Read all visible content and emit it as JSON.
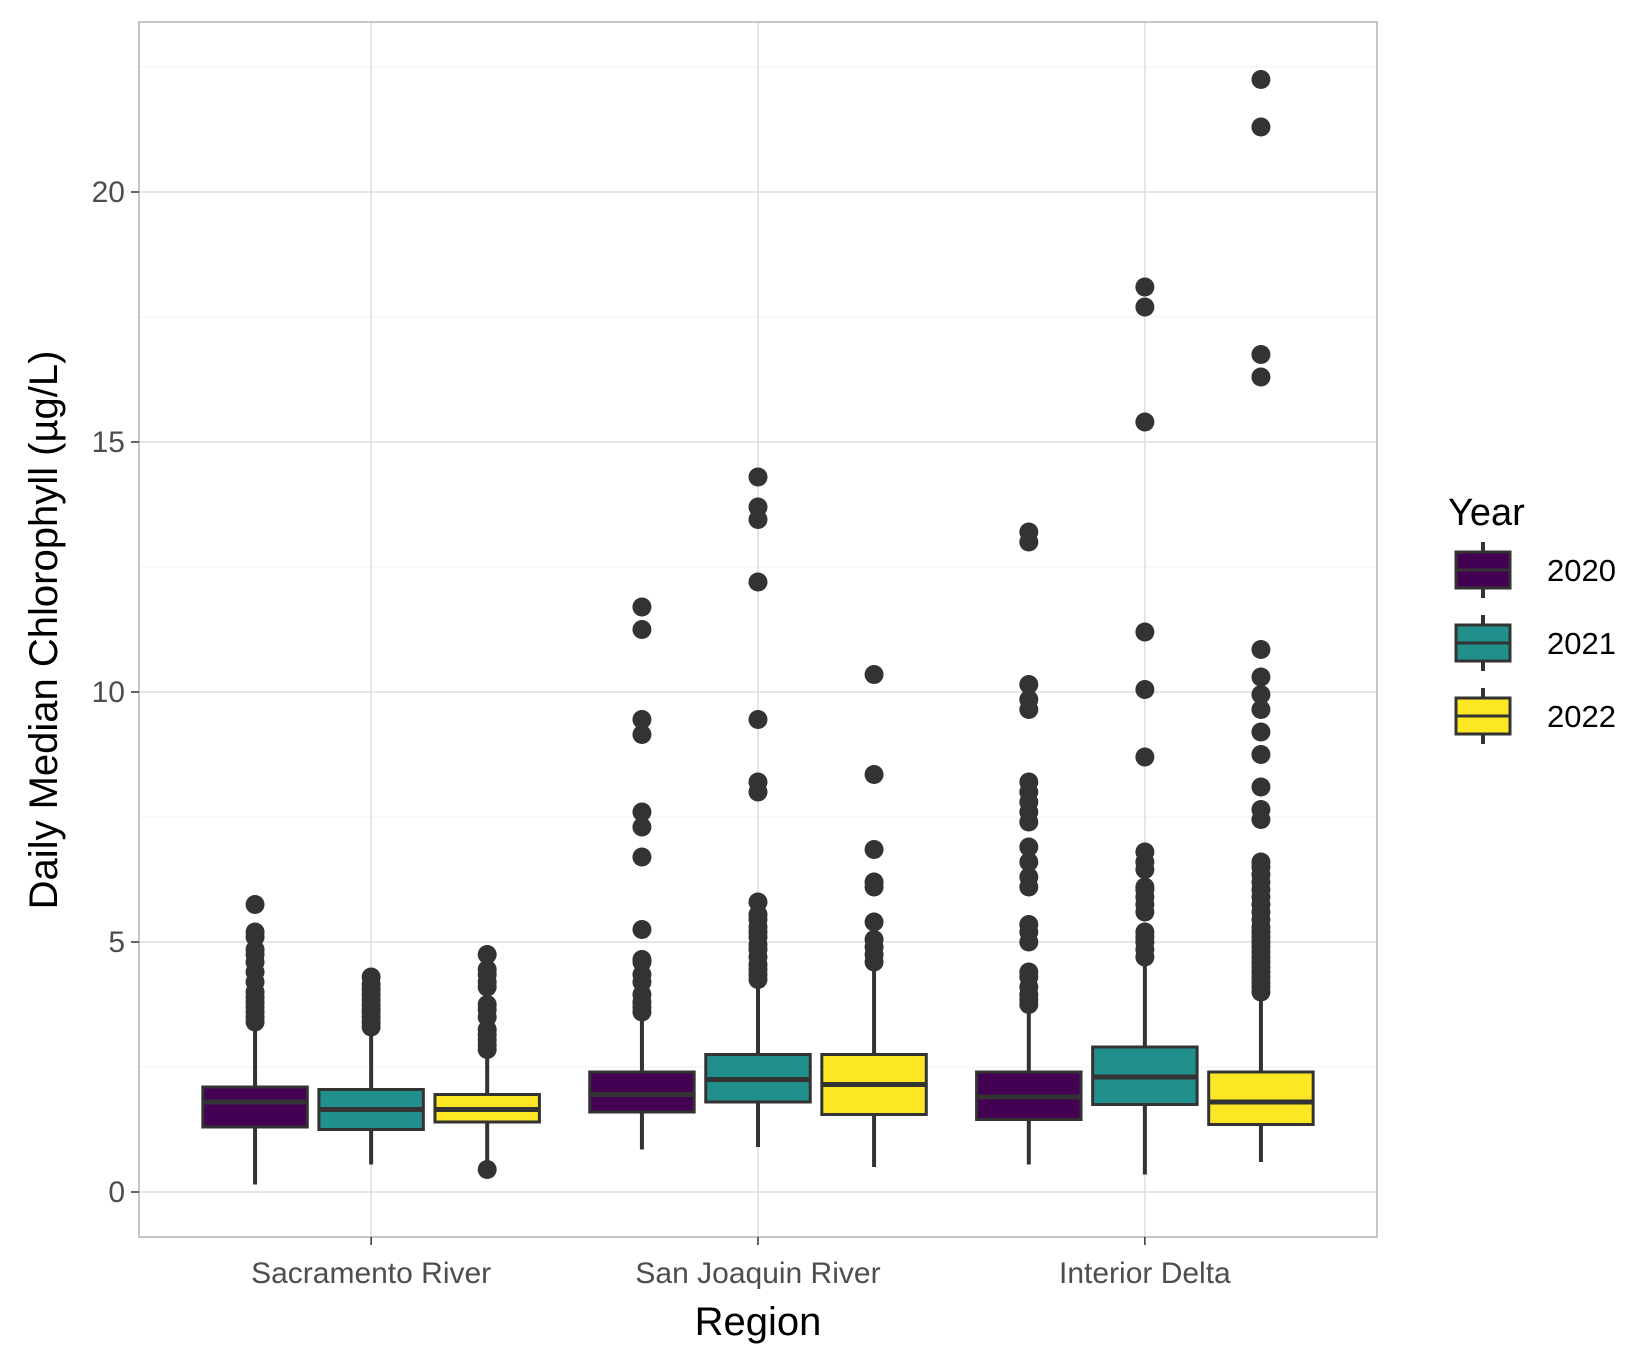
{
  "chart_data": {
    "type": "box",
    "title": "",
    "xlabel": "Region",
    "ylabel": "Daily Median Chlorophyll (µg/L)",
    "ylim": [
      -0.9,
      23.4
    ],
    "yticks": [
      0,
      5,
      10,
      15,
      20
    ],
    "grid": true,
    "legend": {
      "title": "Year",
      "position": "right"
    },
    "categories": [
      "Sacramento River",
      "San Joaquin River",
      "Interior Delta"
    ],
    "series": [
      {
        "name": "2020",
        "color": "#440154",
        "boxes": [
          {
            "category": "Sacramento River",
            "min": 0.15,
            "q1": 1.3,
            "median": 1.8,
            "q3": 2.1,
            "max": 3.3,
            "outliers": [
              3.4,
              3.5,
              3.6,
              3.7,
              3.8,
              3.9,
              4.0,
              4.2,
              4.4,
              4.6,
              4.75,
              4.85,
              5.1,
              5.2,
              5.75
            ]
          },
          {
            "category": "San Joaquin River",
            "min": 0.85,
            "q1": 1.6,
            "median": 1.95,
            "q3": 2.4,
            "max": 3.5,
            "outliers": [
              3.6,
              3.7,
              3.8,
              3.95,
              4.2,
              4.35,
              4.6,
              4.65,
              5.25,
              6.7,
              7.3,
              7.6,
              9.15,
              9.45,
              11.25,
              11.7
            ]
          },
          {
            "category": "Interior Delta",
            "min": 0.55,
            "q1": 1.45,
            "median": 1.9,
            "q3": 2.4,
            "max": 3.65,
            "outliers": [
              3.75,
              3.85,
              3.95,
              4.1,
              4.3,
              4.4,
              5.0,
              5.2,
              5.35,
              6.1,
              6.3,
              6.6,
              6.9,
              7.4,
              7.6,
              7.8,
              8.0,
              8.2,
              9.65,
              9.85,
              10.15,
              13.0,
              13.2
            ]
          }
        ]
      },
      {
        "name": "2021",
        "color": "#21908c",
        "boxes": [
          {
            "category": "Sacramento River",
            "min": 0.55,
            "q1": 1.25,
            "median": 1.65,
            "q3": 2.05,
            "max": 3.25,
            "outliers": [
              3.3,
              3.4,
              3.5,
              3.6,
              3.65,
              3.75,
              3.85,
              3.95,
              4.05,
              4.15,
              4.3
            ]
          },
          {
            "category": "San Joaquin River",
            "min": 0.9,
            "q1": 1.8,
            "median": 2.25,
            "q3": 2.75,
            "max": 4.15,
            "outliers": [
              4.25,
              4.35,
              4.45,
              4.55,
              4.7,
              4.85,
              4.95,
              5.1,
              5.2,
              5.3,
              5.45,
              5.55,
              5.8,
              8.0,
              8.2,
              9.45,
              12.2,
              13.45,
              13.7,
              14.3
            ]
          },
          {
            "category": "Interior Delta",
            "min": 0.35,
            "q1": 1.75,
            "median": 2.3,
            "q3": 2.9,
            "max": 4.6,
            "outliers": [
              4.7,
              4.85,
              5.0,
              5.1,
              5.2,
              5.6,
              5.75,
              5.9,
              6.05,
              6.1,
              6.45,
              6.6,
              6.8,
              8.7,
              10.05,
              11.2,
              15.4,
              17.7,
              18.1
            ]
          }
        ]
      },
      {
        "name": "2022",
        "color": "#fde725",
        "boxes": [
          {
            "category": "Sacramento River",
            "min": 0.5,
            "q1": 1.4,
            "median": 1.65,
            "q3": 1.95,
            "max": 2.8,
            "outliers": [
              0.45,
              2.85,
              2.95,
              3.05,
              3.15,
              3.25,
              3.5,
              3.65,
              3.75,
              4.1,
              4.2,
              4.35,
              4.45,
              4.75
            ]
          },
          {
            "category": "San Joaquin River",
            "min": 0.5,
            "q1": 1.55,
            "median": 2.15,
            "q3": 2.75,
            "max": 4.5,
            "outliers": [
              4.6,
              4.75,
              4.9,
              5.05,
              5.4,
              6.1,
              6.2,
              6.85,
              8.35,
              10.35
            ]
          },
          {
            "category": "Interior Delta",
            "min": 0.6,
            "q1": 1.35,
            "median": 1.8,
            "q3": 2.4,
            "max": 3.95,
            "outliers": [
              4.0,
              4.1,
              4.2,
              4.3,
              4.4,
              4.5,
              4.6,
              4.7,
              4.8,
              4.9,
              5.0,
              5.1,
              5.2,
              5.3,
              5.45,
              5.6,
              5.75,
              5.9,
              6.05,
              6.2,
              6.35,
              6.5,
              6.6,
              7.45,
              7.65,
              8.1,
              8.75,
              9.2,
              9.65,
              9.95,
              10.3,
              10.85,
              16.3,
              16.75,
              21.3,
              22.25
            ]
          }
        ]
      }
    ]
  }
}
